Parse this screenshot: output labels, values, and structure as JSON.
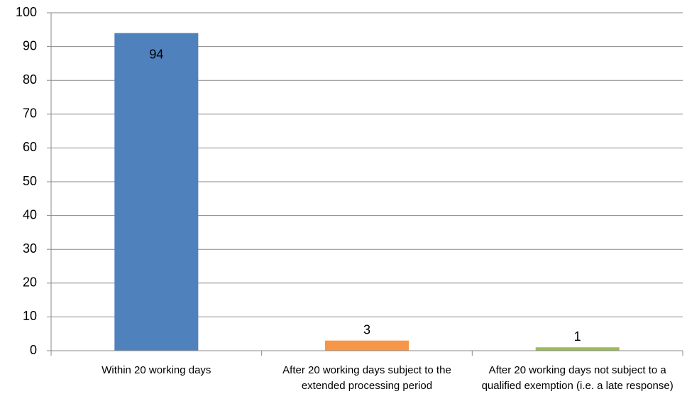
{
  "chart_data": {
    "type": "bar",
    "categories": [
      "Within 20 working days",
      "After 20 working days subject to the extended processing period",
      "After 20 working days not subject to a qualified exemption (i.e. a late response)"
    ],
    "values": [
      94,
      3,
      1
    ],
    "colors": [
      "#4f81bd",
      "#f79646",
      "#9bbb59"
    ],
    "ylim": [
      0,
      100
    ],
    "yticks": [
      0,
      10,
      20,
      30,
      40,
      50,
      60,
      70,
      80,
      90,
      100
    ],
    "grid": true
  }
}
